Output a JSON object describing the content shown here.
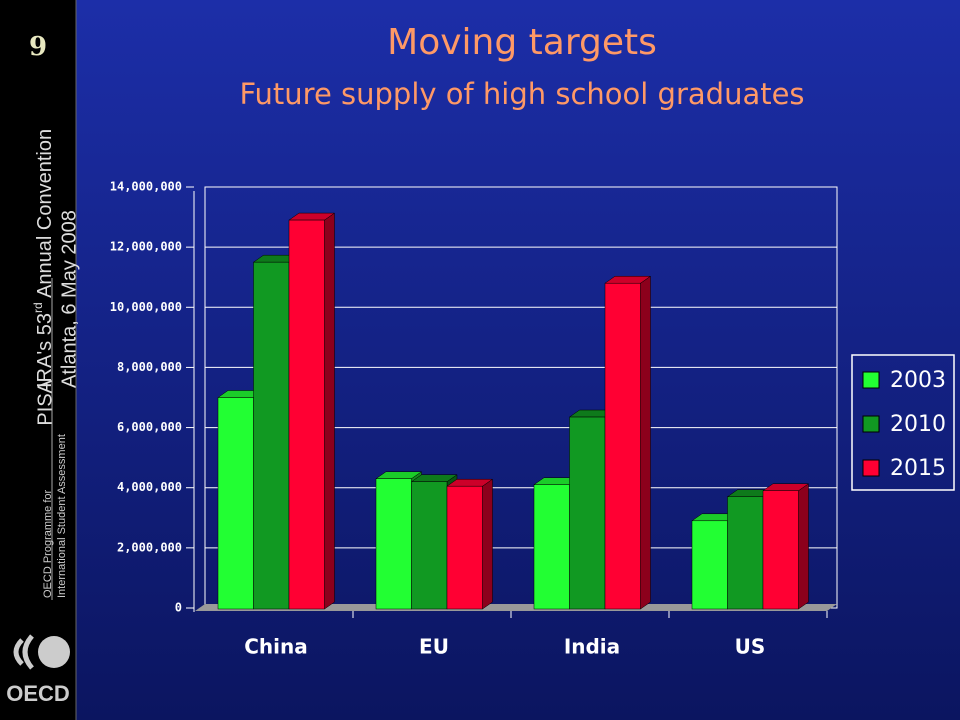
{
  "slide_number": "9",
  "sidebar": {
    "pisa": "PISA",
    "programme_line1": "OECD Programme for",
    "programme_line2": "International Student Assessment",
    "event_pre": "IRA's 53",
    "event_sup": "rd",
    "event_post": " Annual Convention",
    "place_date": "Atlanta, 6 May 2008",
    "logo": "OECD"
  },
  "chart_data": {
    "type": "bar3d",
    "title": "Moving targets",
    "subtitle": "Future supply of high school graduates",
    "categories": [
      "China",
      "EU",
      "India",
      "US"
    ],
    "series": [
      {
        "name": "2003",
        "color": "#22ff33",
        "values": [
          7000000,
          4300000,
          4100000,
          2900000
        ]
      },
      {
        "name": "2010",
        "color": "#119922",
        "values": [
          11500000,
          4200000,
          6350000,
          3700000
        ]
      },
      {
        "name": "2015",
        "color": "#ff0033",
        "values": [
          12900000,
          4050000,
          10800000,
          3900000
        ]
      }
    ],
    "ylim": [
      0,
      14000000
    ],
    "yticks": [
      0,
      {
        "value": 2000000,
        "label": "2,000,000"
      },
      {
        "value": 4000000,
        "label": "4,000,000"
      },
      {
        "value": 6000000,
        "label": "6,000,000"
      },
      {
        "value": 8000000,
        "label": "8,000,000"
      },
      {
        "value": 10000000,
        "label": "10,000,000"
      },
      {
        "value": 12000000,
        "label": "12,000,000"
      },
      {
        "value": 14000000,
        "label": "14,000,000"
      }
    ],
    "grid": true,
    "legend": "right"
  }
}
